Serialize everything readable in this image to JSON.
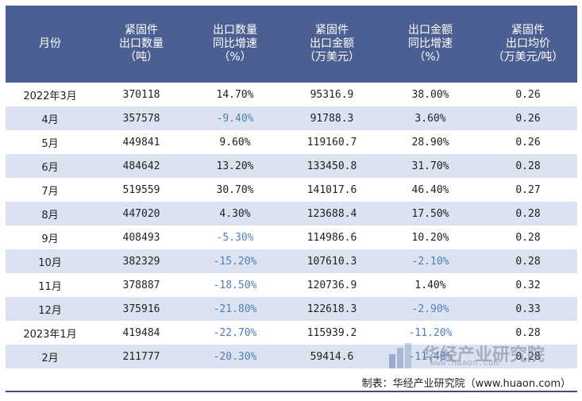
{
  "table": {
    "headers": [
      [
        "月份"
      ],
      [
        "紧固件",
        "出口数量",
        "（吨）"
      ],
      [
        "出口数量",
        "同比增速",
        "（%）"
      ],
      [
        "紧固件",
        "出口金额",
        "（万美元）"
      ],
      [
        "出口金额",
        "同比增速",
        "（%）"
      ],
      [
        "紧固件",
        "出口均价",
        "（万美元/吨）"
      ]
    ],
    "rows": [
      {
        "month": "2022年3月",
        "qty": "370118",
        "qty_yoy": "14.70%",
        "value": "95316.9",
        "value_yoy": "38.00%",
        "price": "0.26",
        "qty_neg": false,
        "value_neg": false
      },
      {
        "month": "4月",
        "qty": "357578",
        "qty_yoy": "-9.40%",
        "value": "91788.3",
        "value_yoy": "3.60%",
        "price": "0.26",
        "qty_neg": true,
        "value_neg": false
      },
      {
        "month": "5月",
        "qty": "449841",
        "qty_yoy": "9.60%",
        "value": "119160.7",
        "value_yoy": "28.90%",
        "price": "0.26",
        "qty_neg": false,
        "value_neg": false
      },
      {
        "month": "6月",
        "qty": "484642",
        "qty_yoy": "13.20%",
        "value": "133450.8",
        "value_yoy": "31.70%",
        "price": "0.28",
        "qty_neg": false,
        "value_neg": false
      },
      {
        "month": "7月",
        "qty": "519559",
        "qty_yoy": "30.70%",
        "value": "141017.6",
        "value_yoy": "46.40%",
        "price": "0.27",
        "qty_neg": false,
        "value_neg": false
      },
      {
        "month": "8月",
        "qty": "447020",
        "qty_yoy": "4.30%",
        "value": "123688.4",
        "value_yoy": "17.50%",
        "price": "0.28",
        "qty_neg": false,
        "value_neg": false
      },
      {
        "month": "9月",
        "qty": "408493",
        "qty_yoy": "-5.30%",
        "value": "114986.6",
        "value_yoy": "10.20%",
        "price": "0.28",
        "qty_neg": true,
        "value_neg": false
      },
      {
        "month": "10月",
        "qty": "382329",
        "qty_yoy": "-15.20%",
        "value": "107610.3",
        "value_yoy": "-2.10%",
        "price": "0.28",
        "qty_neg": true,
        "value_neg": true
      },
      {
        "month": "11月",
        "qty": "378887",
        "qty_yoy": "-18.50%",
        "value": "120736.9",
        "value_yoy": "1.40%",
        "price": "0.32",
        "qty_neg": true,
        "value_neg": false
      },
      {
        "month": "12月",
        "qty": "375916",
        "qty_yoy": "-21.80%",
        "value": "122618.3",
        "value_yoy": "-2.90%",
        "price": "0.33",
        "qty_neg": true,
        "value_neg": true
      },
      {
        "month": "2023年1月",
        "qty": "419484",
        "qty_yoy": "-22.70%",
        "value": "115939.2",
        "value_yoy": "-11.20%",
        "price": "0.28",
        "qty_neg": true,
        "value_neg": true
      },
      {
        "month": "2月",
        "qty": "211777",
        "qty_yoy": "-20.30%",
        "value": "59414.6",
        "value_yoy": "-11.40%",
        "price": "0.28",
        "qty_neg": true,
        "value_neg": true
      }
    ]
  },
  "source_text": "制表：华经产业研究院（www.huaon.com）",
  "watermark": {
    "name": "华经产业研究院",
    "url": "www.huaon.com"
  },
  "colors": {
    "header_bg": "#4b5f92",
    "stripe": "#dbe3f1",
    "negative": "#4f7fb6"
  }
}
